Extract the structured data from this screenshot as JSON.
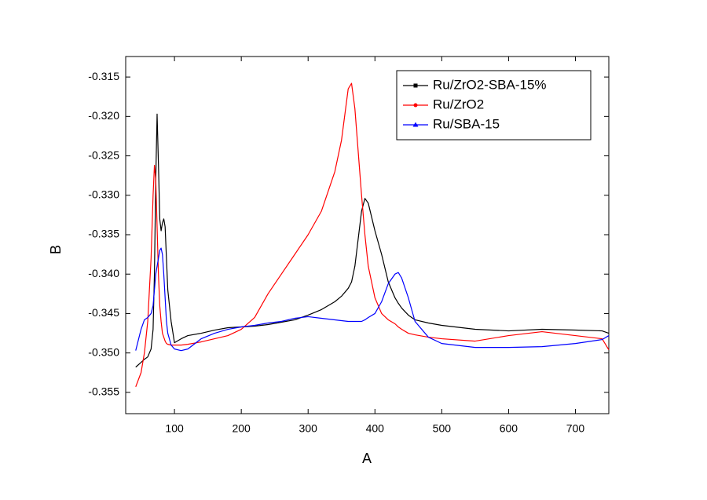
{
  "chart_data": {
    "type": "line",
    "x_label": "A",
    "y_label": "B",
    "x": [
      42,
      50,
      55,
      60,
      65,
      68,
      70,
      72,
      74,
      76,
      78,
      80,
      82,
      84,
      86,
      88,
      90,
      95,
      100,
      110,
      120,
      140,
      160,
      180,
      200,
      220,
      240,
      260,
      280,
      300,
      320,
      340,
      350,
      360,
      365,
      370,
      380,
      385,
      390,
      400,
      410,
      420,
      430,
      435,
      440,
      450,
      460,
      480,
      500,
      550,
      600,
      650,
      700,
      740,
      750
    ],
    "series": [
      {
        "name": "Ru/ZrO2-SBA-15%",
        "color": "#000000",
        "marker": "square",
        "values": [
          -0.3518,
          -0.3512,
          -0.3508,
          -0.3505,
          -0.3495,
          -0.347,
          -0.34,
          -0.328,
          -0.3197,
          -0.326,
          -0.333,
          -0.3345,
          -0.3335,
          -0.333,
          -0.334,
          -0.338,
          -0.342,
          -0.346,
          -0.3487,
          -0.3482,
          -0.3478,
          -0.3475,
          -0.3471,
          -0.3468,
          -0.3467,
          -0.3466,
          -0.3464,
          -0.3461,
          -0.3458,
          -0.3452,
          -0.3445,
          -0.3435,
          -0.3428,
          -0.3418,
          -0.341,
          -0.339,
          -0.332,
          -0.3304,
          -0.331,
          -0.3345,
          -0.3375,
          -0.341,
          -0.343,
          -0.3437,
          -0.3443,
          -0.3452,
          -0.3458,
          -0.3462,
          -0.3465,
          -0.347,
          -0.3472,
          -0.347,
          -0.3471,
          -0.3472,
          -0.3475
        ]
      },
      {
        "name": "Ru/ZrO2",
        "color": "#ff0000",
        "marker": "circle",
        "values": [
          -0.3543,
          -0.3525,
          -0.35,
          -0.346,
          -0.338,
          -0.33,
          -0.3262,
          -0.328,
          -0.334,
          -0.34,
          -0.344,
          -0.346,
          -0.3475,
          -0.348,
          -0.3485,
          -0.3488,
          -0.3489,
          -0.349,
          -0.349,
          -0.349,
          -0.3489,
          -0.3486,
          -0.3482,
          -0.3478,
          -0.347,
          -0.3455,
          -0.3425,
          -0.34,
          -0.3375,
          -0.335,
          -0.332,
          -0.327,
          -0.323,
          -0.3165,
          -0.3158,
          -0.319,
          -0.33,
          -0.335,
          -0.339,
          -0.343,
          -0.345,
          -0.3458,
          -0.3463,
          -0.3467,
          -0.347,
          -0.3475,
          -0.3477,
          -0.348,
          -0.3482,
          -0.3485,
          -0.3478,
          -0.3473,
          -0.3478,
          -0.3482,
          -0.3496
        ]
      },
      {
        "name": "Ru/SBA-15",
        "color": "#0000ff",
        "marker": "triangle",
        "values": [
          -0.3497,
          -0.347,
          -0.3458,
          -0.3455,
          -0.345,
          -0.344,
          -0.342,
          -0.34,
          -0.339,
          -0.338,
          -0.337,
          -0.3367,
          -0.3375,
          -0.34,
          -0.343,
          -0.346,
          -0.3475,
          -0.349,
          -0.3495,
          -0.3497,
          -0.3495,
          -0.3482,
          -0.3475,
          -0.347,
          -0.3467,
          -0.3465,
          -0.3462,
          -0.346,
          -0.3456,
          -0.3454,
          -0.3456,
          -0.3458,
          -0.3459,
          -0.346,
          -0.346,
          -0.346,
          -0.346,
          -0.3458,
          -0.3455,
          -0.345,
          -0.3435,
          -0.3412,
          -0.34,
          -0.3398,
          -0.3405,
          -0.343,
          -0.346,
          -0.348,
          -0.3488,
          -0.3493,
          -0.3493,
          -0.3492,
          -0.3488,
          -0.3483,
          -0.3478
        ]
      }
    ],
    "xlim": [
      27,
      750
    ],
    "ylim": [
      -0.3577,
      -0.3124
    ],
    "xticks": [
      100,
      200,
      300,
      400,
      500,
      600,
      700
    ],
    "yticks": [
      -0.355,
      {
        "value": -0.35,
        "label": "-0.350"
      },
      -0.345,
      {
        "value": -0.34,
        "label": "-0.340"
      },
      -0.335,
      {
        "value": -0.33,
        "label": "-0.330"
      },
      -0.325,
      {
        "value": -0.32,
        "label": "-0.320"
      },
      -0.315
    ],
    "legend": "upper right"
  }
}
